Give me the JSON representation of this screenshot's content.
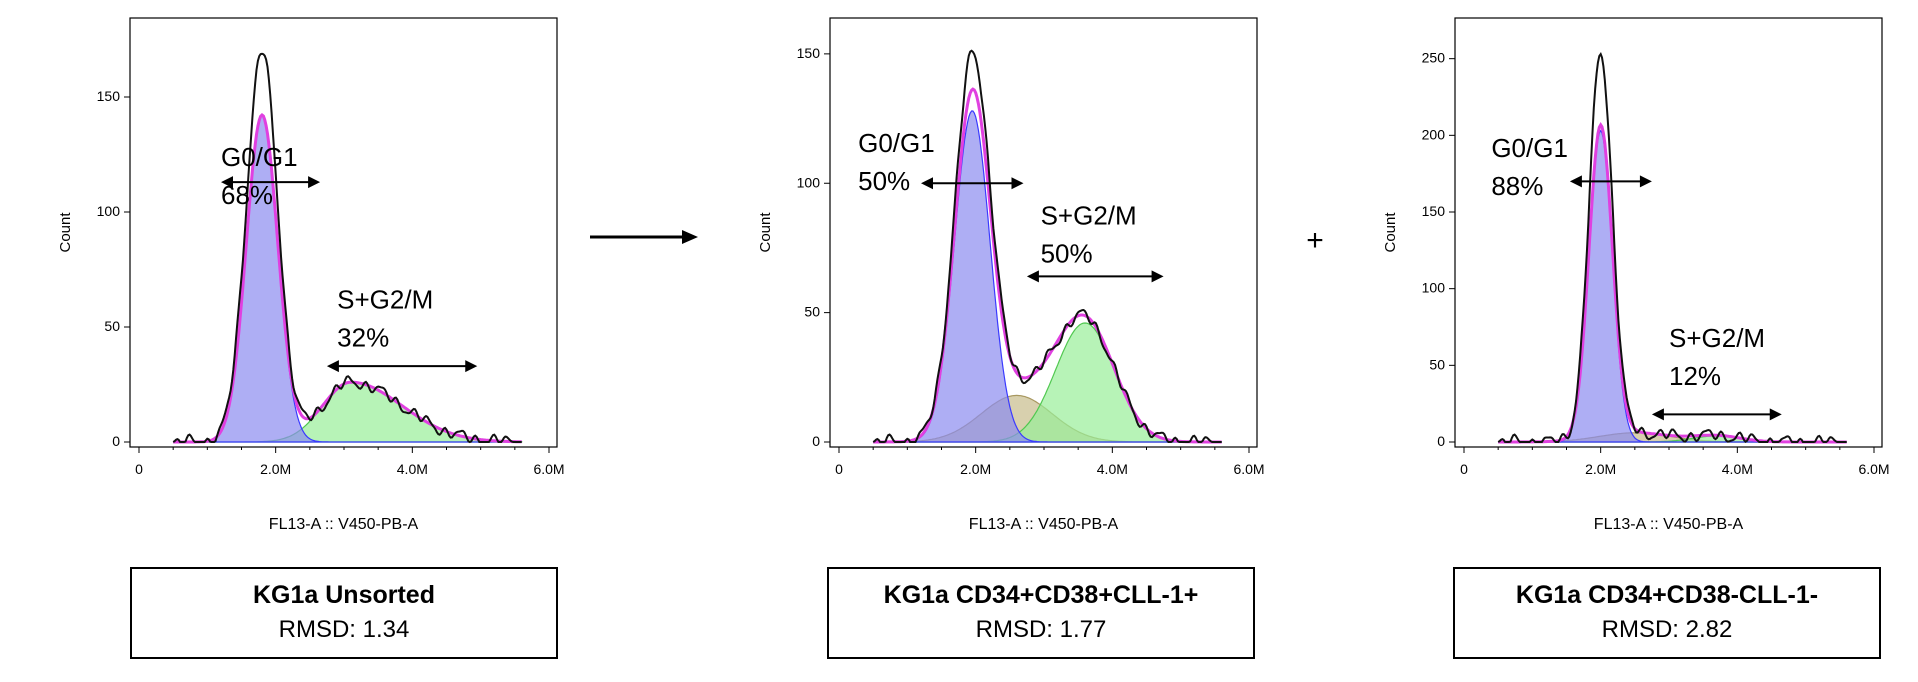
{
  "between_symbols": {
    "arrow_label": "",
    "plus": "+"
  },
  "chart_data": [
    {
      "type": "area",
      "caption_title": "KG1a Unsorted",
      "caption_rmsd": "RMSD: 1.34",
      "ylabel": "Count",
      "xlabel": "FL13-A :: V450-PB-A",
      "xlim": [
        0,
        6000000
      ],
      "ylim": [
        0,
        180
      ],
      "x_ticks": [
        {
          "v": 0,
          "label": "0"
        },
        {
          "v": 2000000,
          "label": "2.0M"
        },
        {
          "v": 4000000,
          "label": "4.0M"
        },
        {
          "v": 6000000,
          "label": "6.0M"
        }
      ],
      "y_ticks": [
        {
          "v": 0,
          "label": "0"
        },
        {
          "v": 50,
          "label": "50"
        },
        {
          "v": 100,
          "label": "100"
        },
        {
          "v": 150,
          "label": "150"
        }
      ],
      "series": [
        {
          "role": "g1_fit",
          "color": "#3a3aff",
          "fill": "#8c8cf0",
          "peak": 1800000,
          "sd": 230000,
          "height": 142
        },
        {
          "role": "s_g2m_fit",
          "color": "#50c850",
          "fill": "#98ee98",
          "peak": 3100000,
          "sd": 750000,
          "height": 26,
          "tail": "symmetric"
        },
        {
          "role": "model_total",
          "color": "#e040e0"
        },
        {
          "role": "raw_data",
          "color": "#111111",
          "peak_height": 170
        }
      ],
      "annotations": [
        {
          "text": "G0/G1",
          "text2": "68%",
          "x": 1200000,
          "y": 120,
          "arrow_x": [
            1200000,
            2650000
          ],
          "arrow_y": 113
        },
        {
          "text": "S+G2/M",
          "text2": "32%",
          "x": 2900000,
          "y": 58,
          "arrow_x": [
            2750000,
            4950000
          ],
          "arrow_y": 33
        }
      ]
    },
    {
      "type": "area",
      "caption_title": "KG1a CD34+CD38+CLL-1+",
      "caption_rmsd": "RMSD: 1.77",
      "ylabel": "Count",
      "xlabel": "FL13-A :: V450-PB-A",
      "xlim": [
        0,
        6000000
      ],
      "ylim": [
        0,
        160
      ],
      "x_ticks": [
        {
          "v": 0,
          "label": "0"
        },
        {
          "v": 2000000,
          "label": "2.0M"
        },
        {
          "v": 4000000,
          "label": "4.0M"
        },
        {
          "v": 6000000,
          "label": "6.0M"
        }
      ],
      "y_ticks": [
        {
          "v": 0,
          "label": "0"
        },
        {
          "v": 50,
          "label": "50"
        },
        {
          "v": 100,
          "label": "100"
        },
        {
          "v": 150,
          "label": "150"
        }
      ],
      "series": [
        {
          "role": "g1_fit",
          "color": "#3a3aff",
          "fill": "#8c8cf0",
          "peak": 1950000,
          "sd": 260000,
          "height": 128
        },
        {
          "role": "s_fit",
          "color": "#a89860",
          "fill": "#c8bc8c",
          "peak": 2600000,
          "sd": 520000,
          "height": 18
        },
        {
          "role": "g2m_fit",
          "color": "#50c850",
          "fill": "#98ee98",
          "peak": 3600000,
          "sd": 430000,
          "height": 46
        },
        {
          "role": "model_total",
          "color": "#e040e0"
        },
        {
          "role": "raw_data",
          "color": "#111111",
          "peak_height": 142
        }
      ],
      "annotations": [
        {
          "text": "G0/G1",
          "text2": "50%",
          "x": 280000,
          "y": 112,
          "arrow_x": [
            1200000,
            2700000
          ],
          "arrow_y": 100
        },
        {
          "text": "S+G2/M",
          "text2": "50%",
          "x": 2950000,
          "y": 84,
          "arrow_x": [
            2750000,
            4750000
          ],
          "arrow_y": 64
        }
      ]
    },
    {
      "type": "area",
      "caption_title": "KG1a CD34+CD38-CLL-1-",
      "caption_rmsd": "RMSD: 2.82",
      "ylabel": "Count",
      "xlabel": "FL13-A :: V450-PB-A",
      "xlim": [
        0,
        6000000
      ],
      "ylim": [
        0,
        270
      ],
      "x_ticks": [
        {
          "v": 0,
          "label": "0"
        },
        {
          "v": 2000000,
          "label": "2.0M"
        },
        {
          "v": 4000000,
          "label": "4.0M"
        },
        {
          "v": 6000000,
          "label": "6.0M"
        }
      ],
      "y_ticks": [
        {
          "v": 0,
          "label": "0"
        },
        {
          "v": 50,
          "label": "50"
        },
        {
          "v": 100,
          "label": "100"
        },
        {
          "v": 150,
          "label": "150"
        },
        {
          "v": 200,
          "label": "200"
        },
        {
          "v": 250,
          "label": "250"
        }
      ],
      "series": [
        {
          "role": "g1_fit",
          "color": "#3a3aff",
          "fill": "#8c8cf0",
          "peak": 2000000,
          "sd": 170000,
          "height": 203
        },
        {
          "role": "s_fit",
          "color": "#a89860",
          "fill": "#c8bc8c",
          "peak": 2500000,
          "sd": 520000,
          "height": 6
        },
        {
          "role": "g2m_fit",
          "color": "#50c850",
          "fill": "#98ee98",
          "peak": 3700000,
          "sd": 350000,
          "height": 4
        },
        {
          "role": "model_total",
          "color": "#e040e0"
        },
        {
          "role": "raw_data",
          "color": "#111111",
          "peak_height": 250
        }
      ],
      "annotations": [
        {
          "text": "G0/G1",
          "text2": "88%",
          "x": 400000,
          "y": 186,
          "arrow_x": [
            1550000,
            2750000
          ],
          "arrow_y": 170
        },
        {
          "text": "S+G2/M",
          "text2": "12%",
          "x": 3000000,
          "y": 62,
          "arrow_x": [
            2750000,
            4650000
          ],
          "arrow_y": 18
        }
      ]
    }
  ]
}
